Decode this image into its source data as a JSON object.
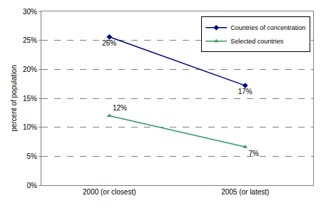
{
  "chart_data": {
    "type": "line",
    "y_label": "percent of population",
    "categories": [
      "2000 (or closest)",
      "2005 (or latest)"
    ],
    "series": [
      {
        "name": "Countries of concentration",
        "color": "#000080",
        "marker": "diamond",
        "values": [
          25.6,
          17.2
        ],
        "value_labels": [
          "26%",
          "17%"
        ]
      },
      {
        "name": "Selected countries",
        "color": "#339966",
        "marker": "triangle-up",
        "values": [
          12,
          6.6
        ],
        "value_labels": [
          "12%",
          "7%"
        ]
      }
    ],
    "ylim": [
      0,
      30
    ],
    "yticks": [
      {
        "value": 0,
        "label": "0%"
      },
      {
        "value": 5,
        "label": "5%"
      },
      {
        "value": 10,
        "label": "10%"
      },
      {
        "value": 15,
        "label": "15%"
      },
      {
        "value": 20,
        "label": "20%"
      },
      {
        "value": 25,
        "label": "25%"
      },
      {
        "value": 30,
        "label": "30%"
      }
    ],
    "grid": true,
    "legend": "upper right",
    "data_labels": true
  }
}
